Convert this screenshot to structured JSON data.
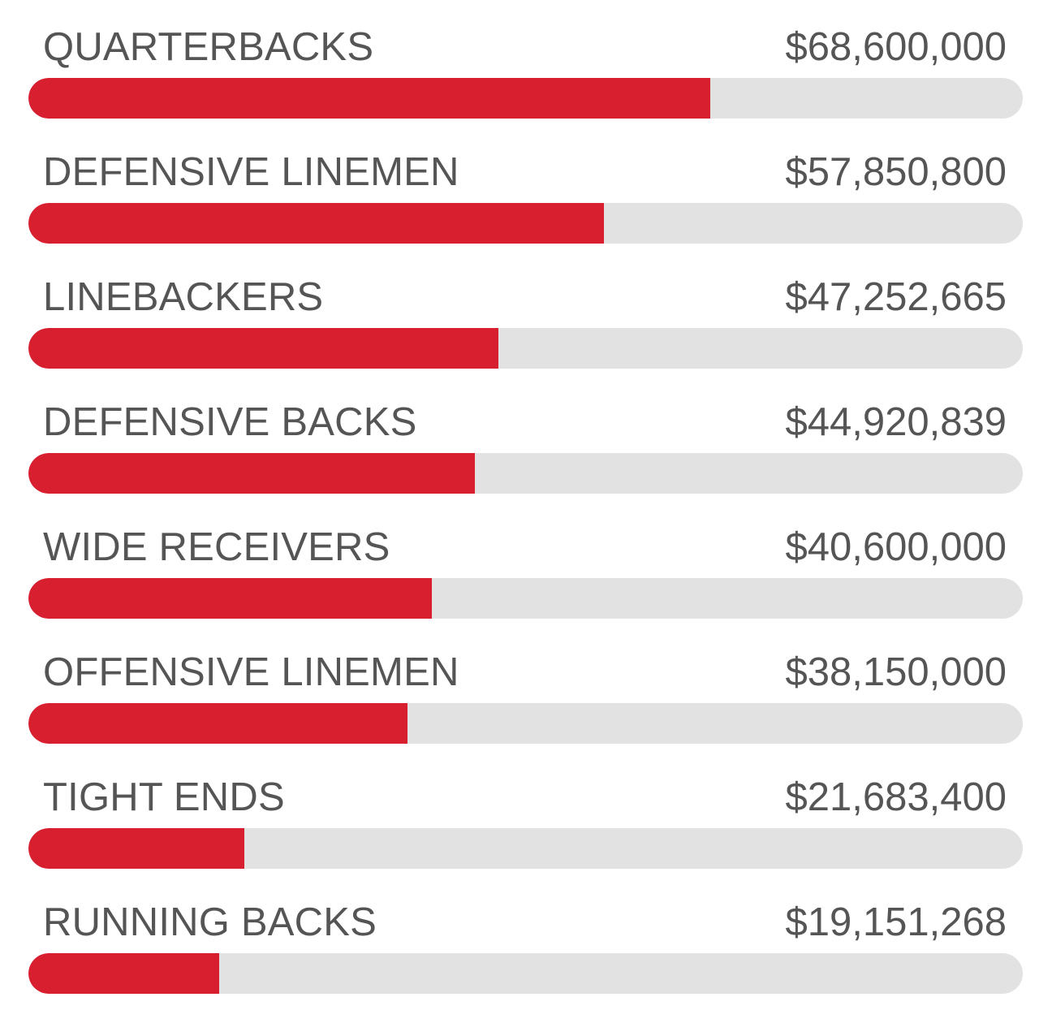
{
  "chart_data": {
    "type": "bar",
    "orientation": "horizontal",
    "categories": [
      "QUARTERBACKS",
      "DEFENSIVE LINEMEN",
      "LINEBACKERS",
      "DEFENSIVE BACKS",
      "WIDE RECEIVERS",
      "OFFENSIVE LINEMEN",
      "TIGHT ENDS",
      "RUNNING BACKS"
    ],
    "values": [
      68600000,
      57850800,
      47252665,
      44920839,
      40600000,
      38150000,
      21683400,
      19151268
    ],
    "value_labels": [
      "$68,600,000",
      "$57,850,800",
      "$47,252,665",
      "$44,920,839",
      "$40,600,000",
      "$38,150,000",
      "$21,683,400",
      "$19,151,268"
    ],
    "title": "",
    "xlabel": "",
    "ylabel": "",
    "xlim": [
      0,
      100000000
    ],
    "grid": false,
    "legend": "none"
  },
  "colors": {
    "bar_fill": "#d81f30",
    "bar_track": "#e2e2e2",
    "text": "#555555"
  }
}
